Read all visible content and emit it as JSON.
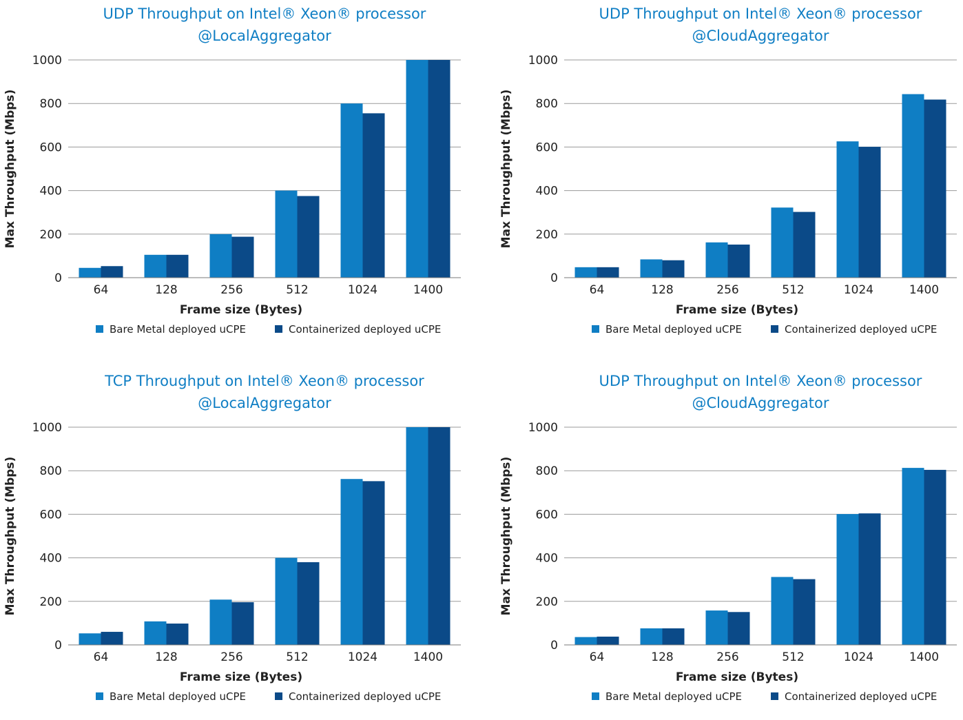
{
  "chart_data": [
    {
      "type": "bar",
      "title": "UDP Throughput on Intel® Xeon® processor",
      "subtitle": "@LocalAggregator",
      "xlabel": "Frame size (Bytes)",
      "ylabel": "Max Throughput (Mbps)",
      "ylim": [
        0,
        1000
      ],
      "yticks": [
        0,
        200,
        400,
        600,
        800,
        1000
      ],
      "categories": [
        "64",
        "128",
        "256",
        "512",
        "1024",
        "1400"
      ],
      "grid": true,
      "legend_position": "bottom",
      "series": [
        {
          "name": "Bare Metal deployed uCPE",
          "color": "#0f7ec4",
          "values": [
            45,
            105,
            200,
            400,
            800,
            1000
          ]
        },
        {
          "name": "Containerized deployed uCPE",
          "color": "#0b4a88",
          "values": [
            53,
            105,
            188,
            375,
            755,
            1000
          ]
        }
      ]
    },
    {
      "type": "bar",
      "title": "UDP Throughput on Intel® Xeon® processor",
      "subtitle": "@CloudAggregator",
      "xlabel": "Frame size (Bytes)",
      "ylabel": "Max Throughput (Mbps)",
      "ylim": [
        0,
        1000
      ],
      "yticks": [
        0,
        200,
        400,
        600,
        800,
        1000
      ],
      "categories": [
        "64",
        "128",
        "256",
        "512",
        "1024",
        "1400"
      ],
      "grid": true,
      "legend_position": "bottom",
      "series": [
        {
          "name": "Bare Metal deployed uCPE",
          "color": "#0f7ec4",
          "values": [
            48,
            84,
            162,
            322,
            626,
            843
          ]
        },
        {
          "name": "Containerized deployed uCPE",
          "color": "#0b4a88",
          "values": [
            48,
            80,
            152,
            302,
            601,
            818
          ]
        }
      ]
    },
    {
      "type": "bar",
      "title": "TCP Throughput on Intel® Xeon® processor",
      "subtitle": "@LocalAggregator",
      "xlabel": "Frame size (Bytes)",
      "ylabel": "Max Throughput (Mbps)",
      "ylim": [
        0,
        1000
      ],
      "yticks": [
        0,
        200,
        400,
        600,
        800,
        1000
      ],
      "categories": [
        "64",
        "128",
        "256",
        "512",
        "1024",
        "1400"
      ],
      "grid": true,
      "legend_position": "bottom",
      "series": [
        {
          "name": "Bare Metal deployed uCPE",
          "color": "#0f7ec4",
          "values": [
            53,
            108,
            208,
            400,
            762,
            1000
          ]
        },
        {
          "name": "Containerized deployed uCPE",
          "color": "#0b4a88",
          "values": [
            60,
            98,
            196,
            380,
            752,
            1000
          ]
        }
      ]
    },
    {
      "type": "bar",
      "title": "UDP Throughput on Intel® Xeon® processor",
      "subtitle": "@CloudAggregator",
      "xlabel": "Frame size (Bytes)",
      "ylabel": "Max Throughput (Mbps)",
      "ylim": [
        0,
        1000
      ],
      "yticks": [
        0,
        200,
        400,
        600,
        800,
        1000
      ],
      "categories": [
        "64",
        "128",
        "256",
        "512",
        "1024",
        "1400"
      ],
      "grid": true,
      "legend_position": "bottom",
      "series": [
        {
          "name": "Bare Metal deployed uCPE",
          "color": "#0f7ec4",
          "values": [
            36,
            76,
            158,
            312,
            601,
            813
          ]
        },
        {
          "name": "Containerized deployed uCPE",
          "color": "#0b4a88",
          "values": [
            38,
            76,
            151,
            302,
            604,
            804
          ]
        }
      ]
    }
  ]
}
